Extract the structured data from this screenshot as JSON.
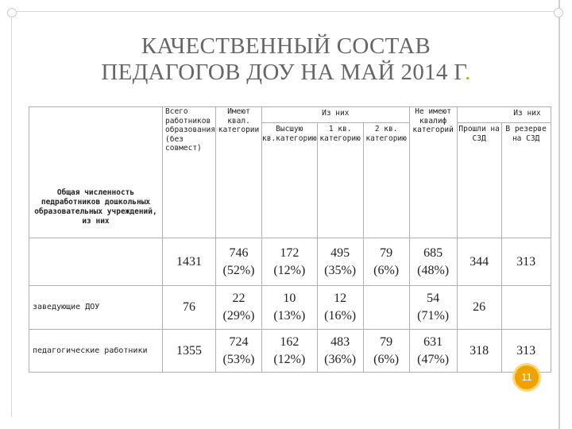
{
  "title": {
    "line1": "КАЧЕСТВЕННЫЙ СОСТАВ",
    "line2": "ПЕДАГОГОВ ДОУ НА МАЙ 2014 Г",
    "period": "."
  },
  "table": {
    "header": {
      "row_label": "Общая численность педработников дошкольных образовательных учреждений, из них",
      "total": "Всего работников образования (без совмест)",
      "have_cat": "Имеют квал. категории",
      "of_them": "Из них",
      "higher": "Высшую кв.категорию",
      "first": "1 кв. категорию",
      "second": "2 кв. категорию",
      "no_cat": "Не имеют квалиф категорий",
      "of_them2": "Из них",
      "passed": "Прошли на СЗД",
      "reserve": "В резерве на СЗД"
    },
    "rows": [
      {
        "label": "",
        "total": "1431",
        "have_cat": "746",
        "have_cat_pct": "(52%)",
        "higher": "172",
        "higher_pct": "(12%)",
        "first": "495",
        "first_pct": "(35%)",
        "second": "79",
        "second_pct": "(6%)",
        "no_cat": "685",
        "no_cat_pct": "(48%)",
        "passed": "344",
        "reserve": "313"
      },
      {
        "label": "заведующие ДОУ",
        "total": "76",
        "have_cat": "22",
        "have_cat_pct": "(29%)",
        "higher": "10",
        "higher_pct": "(13%)",
        "first": "12",
        "first_pct": "(16%)",
        "second": "",
        "second_pct": "",
        "no_cat": "54",
        "no_cat_pct": "(71%)",
        "passed": "26",
        "reserve": ""
      },
      {
        "label": "педагогические работники",
        "total": "1355",
        "have_cat": "724",
        "have_cat_pct": "(53%)",
        "higher": "162",
        "higher_pct": "(12%)",
        "first": "483",
        "first_pct": "(36%)",
        "second": "79",
        "second_pct": "(6%)",
        "no_cat": "631",
        "no_cat_pct": "(47%)",
        "passed": "318",
        "reserve": "313"
      }
    ]
  },
  "page_number": "11"
}
